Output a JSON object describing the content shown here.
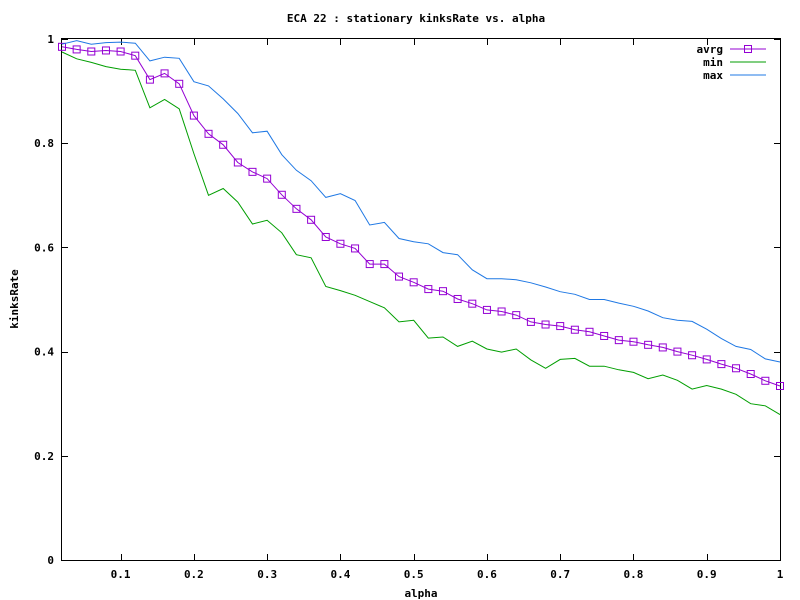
{
  "chart_data": {
    "type": "line",
    "title": "ECA 22 : stationary kinksRate vs. alpha",
    "xlabel": "alpha",
    "ylabel": "kinksRate",
    "xlim": [
      0.02,
      1.0
    ],
    "ylim": [
      0,
      1
    ],
    "x_ticks": [
      0.1,
      0.2,
      0.3,
      0.4,
      0.5,
      0.6,
      0.7,
      0.8,
      0.9,
      1
    ],
    "x_tick_labels": [
      "0.1",
      "0.2",
      "0.3",
      "0.4",
      "0.5",
      "0.6",
      "0.7",
      "0.8",
      "0.9",
      "1"
    ],
    "y_ticks": [
      0,
      0.2,
      0.4,
      0.6,
      0.8,
      1
    ],
    "y_tick_labels": [
      "0",
      "0.2",
      "0.4",
      "0.6",
      "0.8",
      "1"
    ],
    "grid": false,
    "legend_position": "top-right",
    "x": [
      0.02,
      0.04,
      0.06,
      0.08,
      0.1,
      0.12,
      0.14,
      0.16,
      0.18,
      0.2,
      0.22,
      0.24,
      0.26,
      0.28,
      0.3,
      0.32,
      0.34,
      0.36,
      0.38,
      0.4,
      0.42,
      0.44,
      0.46,
      0.48,
      0.5,
      0.52,
      0.54,
      0.56,
      0.58,
      0.6,
      0.62,
      0.64,
      0.66,
      0.68,
      0.7,
      0.72,
      0.74,
      0.76,
      0.78,
      0.8,
      0.82,
      0.84,
      0.86,
      0.88,
      0.9,
      0.92,
      0.94,
      0.96,
      0.98,
      1.0
    ],
    "series": [
      {
        "name": "avrg",
        "color": "#9400d3",
        "marker": "square",
        "values": [
          0.985,
          0.98,
          0.976,
          0.978,
          0.976,
          0.968,
          0.922,
          0.934,
          0.914,
          0.853,
          0.818,
          0.797,
          0.763,
          0.745,
          0.732,
          0.701,
          0.674,
          0.653,
          0.62,
          0.607,
          0.598,
          0.568,
          0.568,
          0.544,
          0.533,
          0.52,
          0.516,
          0.501,
          0.492,
          0.48,
          0.477,
          0.47,
          0.457,
          0.452,
          0.449,
          0.442,
          0.438,
          0.43,
          0.422,
          0.419,
          0.413,
          0.408,
          0.4,
          0.393,
          0.385,
          0.376,
          0.368,
          0.357,
          0.344,
          0.334
        ]
      },
      {
        "name": "min",
        "color": "#009e00",
        "marker": "none",
        "values": [
          0.975,
          0.962,
          0.955,
          0.947,
          0.942,
          0.94,
          0.868,
          0.884,
          0.866,
          0.78,
          0.7,
          0.713,
          0.687,
          0.645,
          0.652,
          0.628,
          0.586,
          0.58,
          0.525,
          0.517,
          0.508,
          0.496,
          0.484,
          0.457,
          0.46,
          0.426,
          0.428,
          0.41,
          0.42,
          0.405,
          0.399,
          0.405,
          0.384,
          0.368,
          0.385,
          0.387,
          0.372,
          0.372,
          0.365,
          0.36,
          0.348,
          0.355,
          0.345,
          0.328,
          0.335,
          0.328,
          0.318,
          0.3,
          0.296,
          0.279
        ]
      },
      {
        "name": "max",
        "color": "#1f78e4",
        "marker": "none",
        "values": [
          0.99,
          0.997,
          0.99,
          0.993,
          0.994,
          0.992,
          0.958,
          0.965,
          0.963,
          0.918,
          0.91,
          0.885,
          0.857,
          0.82,
          0.823,
          0.778,
          0.748,
          0.728,
          0.696,
          0.703,
          0.69,
          0.643,
          0.648,
          0.617,
          0.611,
          0.607,
          0.59,
          0.586,
          0.557,
          0.54,
          0.54,
          0.538,
          0.532,
          0.524,
          0.515,
          0.51,
          0.5,
          0.5,
          0.493,
          0.487,
          0.478,
          0.465,
          0.46,
          0.458,
          0.443,
          0.425,
          0.41,
          0.404,
          0.386,
          0.38
        ]
      }
    ]
  }
}
